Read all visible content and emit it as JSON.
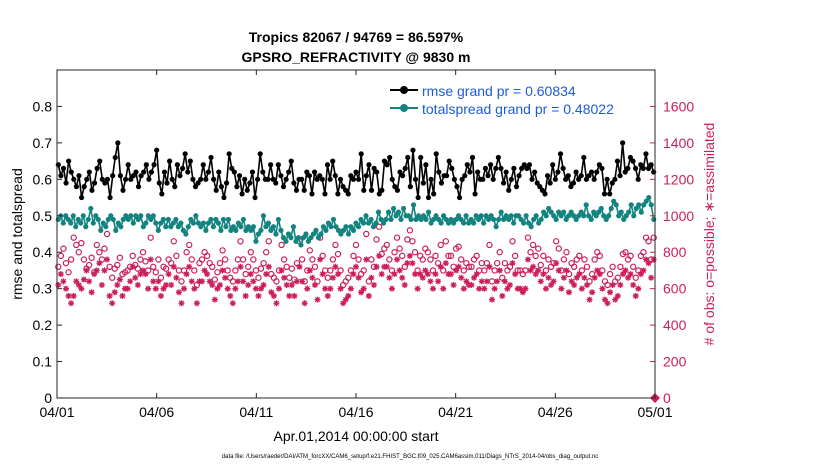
{
  "chart_data": {
    "type": "line",
    "title": [
      "Tropics 82067 / 94769 = 86.597%",
      "GPSRO_REFRACTIVITY @ 9830 m"
    ],
    "xlabel": "Apr.01,2014 00:00:00 start",
    "ylabel_left": "rmse and totalspread",
    "ylabel_right": "# of obs: o=possible; ∗=assimilated",
    "footer": "data file: /Users/raeder/DAI/ATM_forcXX/CAM6_setup/f.e21.FHIST_BGC.f09_025.CAM6assim.011/Diags_NTrS_2014-04/obs_diag_output.nc",
    "xlim_days": [
      0,
      30
    ],
    "x_ticks": [
      {
        "day": 0,
        "label": "04/01"
      },
      {
        "day": 5,
        "label": "04/06"
      },
      {
        "day": 10,
        "label": "04/11"
      },
      {
        "day": 15,
        "label": "04/16"
      },
      {
        "day": 20,
        "label": "04/21"
      },
      {
        "day": 25,
        "label": "04/26"
      },
      {
        "day": 30,
        "label": "05/01"
      }
    ],
    "ylim_left": [
      0,
      0.9
    ],
    "y_ticks_left": [
      "0",
      "0.1",
      "0.2",
      "0.3",
      "0.4",
      "0.5",
      "0.6",
      "0.7",
      "0.8"
    ],
    "ylim_right": [
      0,
      1800
    ],
    "y_ticks_right": [
      "0",
      "200",
      "400",
      "600",
      "800",
      "1000",
      "1200",
      "1400",
      "1600"
    ],
    "legend_position": "top-right",
    "colors": {
      "rmse": "#000000",
      "spread": "#12837f",
      "obs": "#cc1f5a",
      "legend_text": "#1e5bd8",
      "right_axis": "#cc1f5a"
    },
    "series": [
      {
        "name": "rmse grand pr = 0.60834",
        "axis": "left",
        "values": [
          0.64,
          0.61,
          0.63,
          0.59,
          0.65,
          0.62,
          0.6,
          0.58,
          0.61,
          0.55,
          0.58,
          0.6,
          0.62,
          0.57,
          0.59,
          0.63,
          0.65,
          0.6,
          0.59,
          0.6,
          0.55,
          0.61,
          0.66,
          0.7,
          0.61,
          0.57,
          0.6,
          0.64,
          0.6,
          0.61,
          0.62,
          0.58,
          0.61,
          0.62,
          0.64,
          0.6,
          0.62,
          0.64,
          0.68,
          0.59,
          0.56,
          0.62,
          0.59,
          0.65,
          0.6,
          0.58,
          0.64,
          0.61,
          0.63,
          0.67,
          0.62,
          0.65,
          0.6,
          0.58,
          0.59,
          0.6,
          0.64,
          0.6,
          0.62,
          0.66,
          0.6,
          0.57,
          0.62,
          0.58,
          0.55,
          0.59,
          0.67,
          0.63,
          0.62,
          0.58,
          0.61,
          0.56,
          0.6,
          0.57,
          0.59,
          0.62,
          0.55,
          0.6,
          0.67,
          0.62,
          0.6,
          0.6,
          0.64,
          0.6,
          0.59,
          0.64,
          0.61,
          0.58,
          0.6,
          0.62,
          0.65,
          0.59,
          0.57,
          0.6,
          0.6,
          0.57,
          0.62,
          0.61,
          0.56,
          0.62,
          0.6,
          0.61,
          0.6,
          0.56,
          0.64,
          0.6,
          0.65,
          0.61,
          0.56,
          0.6,
          0.58,
          0.57,
          0.56,
          0.61,
          0.6,
          0.62,
          0.6,
          0.67,
          0.57,
          0.61,
          0.64,
          0.57,
          0.63,
          0.62,
          0.56,
          0.57,
          0.65,
          0.64,
          0.66,
          0.6,
          0.58,
          0.57,
          0.62,
          0.61,
          0.63,
          0.66,
          0.58,
          0.68,
          0.6,
          0.55,
          0.66,
          0.59,
          0.64,
          0.55,
          0.6,
          0.56,
          0.67,
          0.62,
          0.59,
          0.61,
          0.61,
          0.65,
          0.63,
          0.6,
          0.58,
          0.55,
          0.6,
          0.61,
          0.64,
          0.62,
          0.66,
          0.56,
          0.62,
          0.6,
          0.6,
          0.63,
          0.61,
          0.64,
          0.6,
          0.63,
          0.66,
          0.63,
          0.59,
          0.62,
          0.57,
          0.6,
          0.63,
          0.58,
          0.61,
          0.63,
          0.64,
          0.63,
          0.64,
          0.6,
          0.62,
          0.59,
          0.58,
          0.57,
          0.56,
          0.61,
          0.59,
          0.64,
          0.6,
          0.62,
          0.67,
          0.63,
          0.6,
          0.61,
          0.58,
          0.59,
          0.62,
          0.6,
          0.61,
          0.66,
          0.6,
          0.61,
          0.62,
          0.6,
          0.62,
          0.64,
          0.63,
          0.56,
          0.6,
          0.56,
          0.59,
          0.6,
          0.65,
          0.61,
          0.7,
          0.62,
          0.63,
          0.66,
          0.65,
          0.63,
          0.6,
          0.64,
          0.63,
          0.67,
          0.63,
          0.64,
          0.62
        ]
      },
      {
        "name": "totalspread grand pr = 0.48022",
        "axis": "left",
        "values": [
          0.49,
          0.5,
          0.48,
          0.5,
          0.49,
          0.48,
          0.5,
          0.47,
          0.49,
          0.48,
          0.5,
          0.47,
          0.49,
          0.52,
          0.48,
          0.5,
          0.49,
          0.46,
          0.48,
          0.47,
          0.49,
          0.5,
          0.49,
          0.46,
          0.48,
          0.47,
          0.49,
          0.5,
          0.49,
          0.5,
          0.48,
          0.5,
          0.49,
          0.5,
          0.47,
          0.48,
          0.5,
          0.49,
          0.5,
          0.48,
          0.46,
          0.48,
          0.49,
          0.47,
          0.49,
          0.47,
          0.48,
          0.49,
          0.47,
          0.48,
          0.46,
          0.45,
          0.47,
          0.49,
          0.48,
          0.5,
          0.48,
          0.47,
          0.48,
          0.46,
          0.48,
          0.49,
          0.47,
          0.49,
          0.48,
          0.46,
          0.49,
          0.47,
          0.49,
          0.46,
          0.47,
          0.46,
          0.48,
          0.47,
          0.49,
          0.46,
          0.47,
          0.46,
          0.47,
          0.43,
          0.45,
          0.46,
          0.5,
          0.47,
          0.48,
          0.46,
          0.47,
          0.45,
          0.49,
          0.46,
          0.44,
          0.43,
          0.45,
          0.44,
          0.47,
          0.43,
          0.44,
          0.42,
          0.44,
          0.45,
          0.43,
          0.44,
          0.45,
          0.46,
          0.44,
          0.45,
          0.47,
          0.46,
          0.48,
          0.47,
          0.49,
          0.47,
          0.46,
          0.45,
          0.46,
          0.47,
          0.45,
          0.47,
          0.46,
          0.48,
          0.47,
          0.49,
          0.48,
          0.5,
          0.48,
          0.49,
          0.47,
          0.48,
          0.51,
          0.49,
          0.48,
          0.49,
          0.51,
          0.49,
          0.52,
          0.5,
          0.51,
          0.49,
          0.52,
          0.5,
          0.5,
          0.49,
          0.53,
          0.49,
          0.5,
          0.49,
          0.5,
          0.49,
          0.51,
          0.48,
          0.49,
          0.5,
          0.49,
          0.48,
          0.5,
          0.49,
          0.48,
          0.49,
          0.48,
          0.49,
          0.5,
          0.49,
          0.48,
          0.5,
          0.48,
          0.49,
          0.48,
          0.5,
          0.49,
          0.5,
          0.48,
          0.5,
          0.49,
          0.5,
          0.49,
          0.47,
          0.49,
          0.51,
          0.49,
          0.5,
          0.49,
          0.5,
          0.48,
          0.5,
          0.5,
          0.49,
          0.48,
          0.5,
          0.48,
          0.47,
          0.49,
          0.5,
          0.48,
          0.49,
          0.51,
          0.5,
          0.52,
          0.51,
          0.5,
          0.49,
          0.51,
          0.5,
          0.51,
          0.49,
          0.5,
          0.51,
          0.5,
          0.49,
          0.5,
          0.51,
          0.5,
          0.53,
          0.5,
          0.49,
          0.51,
          0.5,
          0.51,
          0.52,
          0.5,
          0.49,
          0.5,
          0.52,
          0.54,
          0.53,
          0.5,
          0.51,
          0.49,
          0.5,
          0.51,
          0.53,
          0.5,
          0.52,
          0.53,
          0.51,
          0.53,
          0.54,
          0.55,
          0.53,
          0.49
        ]
      },
      {
        "name": "possible",
        "axis": "right",
        "marker": "o",
        "values": [
          720,
          780,
          820,
          740,
          690,
          760,
          880,
          840,
          800,
          850,
          760,
          710,
          730,
          770,
          690,
          840,
          800,
          760,
          820,
          900,
          720,
          660,
          710,
          730,
          770,
          680,
          690,
          700,
          720,
          780,
          730,
          710,
          760,
          800,
          750,
          700,
          880,
          720,
          690,
          760,
          660,
          720,
          710,
          760,
          740,
          860,
          780,
          700,
          640,
          700,
          800,
          840,
          760,
          700,
          620,
          740,
          760,
          800,
          780,
          740,
          720,
          650,
          690,
          740,
          810,
          760,
          700,
          660,
          640,
          700,
          760,
          860,
          760,
          680,
          720,
          800,
          760,
          700,
          660,
          710,
          740,
          800,
          860,
          680,
          660,
          640,
          700,
          840,
          760,
          720,
          660,
          710,
          650,
          740,
          860,
          760,
          640,
          700,
          810,
          760,
          720,
          640,
          880,
          780,
          700,
          660,
          700,
          760,
          840,
          790,
          700,
          620,
          640,
          660,
          700,
          780,
          840,
          760,
          680,
          700,
          900,
          640,
          760,
          720,
          870,
          940,
          790,
          820,
          840,
          760,
          700,
          800,
          880,
          820,
          780,
          720,
          870,
          920,
          860,
          800,
          700,
          780,
          760,
          820,
          800,
          760,
          700,
          780,
          740,
          840,
          700,
          860,
          780,
          780,
          720,
          820,
          830,
          760,
          700,
          740,
          720,
          720,
          760,
          780,
          700,
          740,
          700,
          740,
          840,
          640,
          700,
          740,
          800,
          660,
          740,
          700,
          720,
          860,
          780,
          700,
          700,
          680,
          700,
          880,
          800,
          840,
          780,
          820,
          730,
          780,
          700,
          760,
          720,
          740,
          860,
          820,
          700,
          760,
          800,
          680,
          740,
          720,
          760,
          780,
          700,
          760,
          720,
          640,
          680,
          760,
          800,
          780,
          700,
          640,
          620,
          680,
          720,
          640,
          660,
          720,
          790,
          800,
          760,
          780,
          720,
          660,
          700,
          780,
          800,
          880,
          860,
          760,
          880
        ]
      },
      {
        "name": "assimilated",
        "axis": "right",
        "marker": "*",
        "values": [
          620,
          680,
          640,
          600,
          560,
          520,
          560,
          640,
          620,
          600,
          650,
          700,
          640,
          580,
          680,
          700,
          740,
          620,
          700,
          760,
          560,
          520,
          580,
          620,
          650,
          560,
          600,
          600,
          640,
          720,
          660,
          620,
          680,
          700,
          680,
          600,
          760,
          640,
          600,
          640,
          560,
          600,
          620,
          680,
          620,
          720,
          660,
          580,
          520,
          600,
          680,
          720,
          640,
          600,
          520,
          640,
          640,
          700,
          680,
          640,
          620,
          540,
          600,
          620,
          700,
          660,
          600,
          560,
          520,
          600,
          640,
          720,
          640,
          560,
          620,
          680,
          640,
          600,
          560,
          600,
          620,
          680,
          720,
          580,
          560,
          520,
          600,
          700,
          660,
          620,
          560,
          620,
          560,
          640,
          720,
          640,
          520,
          600,
          700,
          660,
          620,
          540,
          760,
          680,
          600,
          560,
          600,
          660,
          720,
          680,
          600,
          520,
          540,
          560,
          600,
          680,
          720,
          660,
          580,
          600,
          760,
          560,
          660,
          620,
          720,
          780,
          680,
          720,
          720,
          660,
          600,
          680,
          760,
          700,
          660,
          620,
          740,
          780,
          740,
          680,
          600,
          680,
          660,
          700,
          680,
          640,
          600,
          680,
          640,
          720,
          600,
          740,
          680,
          680,
          620,
          700,
          720,
          660,
          600,
          640,
          620,
          620,
          660,
          680,
          600,
          640,
          600,
          640,
          720,
          540,
          600,
          640,
          700,
          560,
          640,
          600,
          620,
          740,
          680,
          600,
          600,
          580,
          600,
          760,
          700,
          720,
          680,
          700,
          640,
          680,
          600,
          660,
          620,
          640,
          740,
          700,
          600,
          660,
          700,
          580,
          640,
          620,
          660,
          680,
          600,
          660,
          620,
          540,
          580,
          660,
          700,
          680,
          600,
          540,
          520,
          580,
          620,
          540,
          560,
          620,
          680,
          700,
          660,
          680,
          620,
          560,
          600,
          680,
          700,
          760,
          740,
          660,
          760
        ]
      }
    ],
    "end_marker": {
      "axis": "right",
      "x_day": 30,
      "y": 0
    }
  }
}
